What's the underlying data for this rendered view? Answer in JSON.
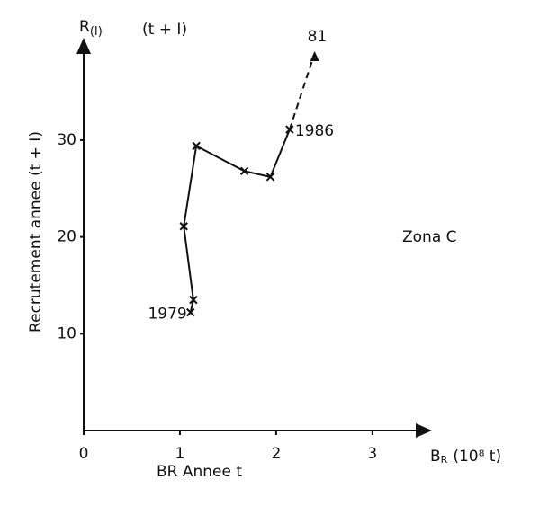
{
  "chart_data": {
    "type": "line",
    "ylabel_symbol": "R",
    "ylabel_symbol_sub": "(I)",
    "ylabel_top": "(t + I)",
    "ylabel": "Recrutement annee   (t + I)",
    "xlabel_symbol": "B",
    "xlabel_symbol_sub": "R",
    "xlabel_unit": "(10⁸ t)",
    "xlabel": "BR   Annee t",
    "annotation": "Zona C",
    "xlim": [
      0,
      3.6
    ],
    "ylim": [
      0,
      40.3
    ],
    "xticks": [
      0,
      1,
      2,
      3
    ],
    "yticks": [
      10,
      20,
      30
    ],
    "series": [
      {
        "color": "#111111",
        "style": "solid",
        "x": [
          1.11,
          1.14,
          1.04,
          1.17,
          1.67,
          1.94,
          2.14
        ],
        "values": [
          12.2,
          13.5,
          21.1,
          29.4,
          26.8,
          26.2,
          31.1
        ],
        "point_labels": [
          "1979",
          null,
          null,
          null,
          null,
          null,
          "1986"
        ]
      },
      {
        "color": "#111111",
        "style": "dashed",
        "x": [
          2.14,
          2.4
        ],
        "values": [
          31.1,
          39
        ],
        "point_labels": [
          null,
          "81"
        ]
      }
    ]
  }
}
